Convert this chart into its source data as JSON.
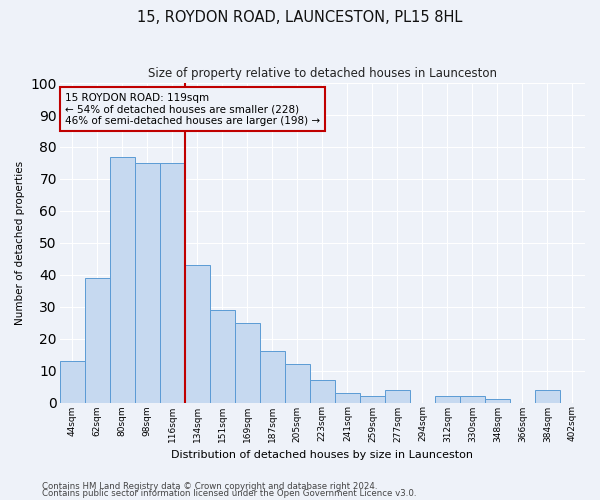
{
  "title": "15, ROYDON ROAD, LAUNCESTON, PL15 8HL",
  "subtitle": "Size of property relative to detached houses in Launceston",
  "xlabel": "Distribution of detached houses by size in Launceston",
  "ylabel": "Number of detached properties",
  "categories": [
    "44sqm",
    "62sqm",
    "80sqm",
    "98sqm",
    "116sqm",
    "134sqm",
    "151sqm",
    "169sqm",
    "187sqm",
    "205sqm",
    "223sqm",
    "241sqm",
    "259sqm",
    "277sqm",
    "294sqm",
    "312sqm",
    "330sqm",
    "348sqm",
    "366sqm",
    "384sqm",
    "402sqm"
  ],
  "values": [
    13,
    39,
    77,
    75,
    75,
    43,
    29,
    25,
    16,
    12,
    7,
    3,
    2,
    4,
    0,
    2,
    2,
    1,
    0,
    4,
    0
  ],
  "bar_color": "#c6d9f0",
  "bar_edge_color": "#5b9bd5",
  "vline_index": 4,
  "vline_color": "#c00000",
  "annotation_text": "15 ROYDON ROAD: 119sqm\n← 54% of detached houses are smaller (228)\n46% of semi-detached houses are larger (198) →",
  "annotation_box_color": "#c00000",
  "bg_color": "#eef2f9",
  "grid_color": "#ffffff",
  "ylim": [
    0,
    100
  ],
  "footer1": "Contains HM Land Registry data © Crown copyright and database right 2024.",
  "footer2": "Contains public sector information licensed under the Open Government Licence v3.0."
}
